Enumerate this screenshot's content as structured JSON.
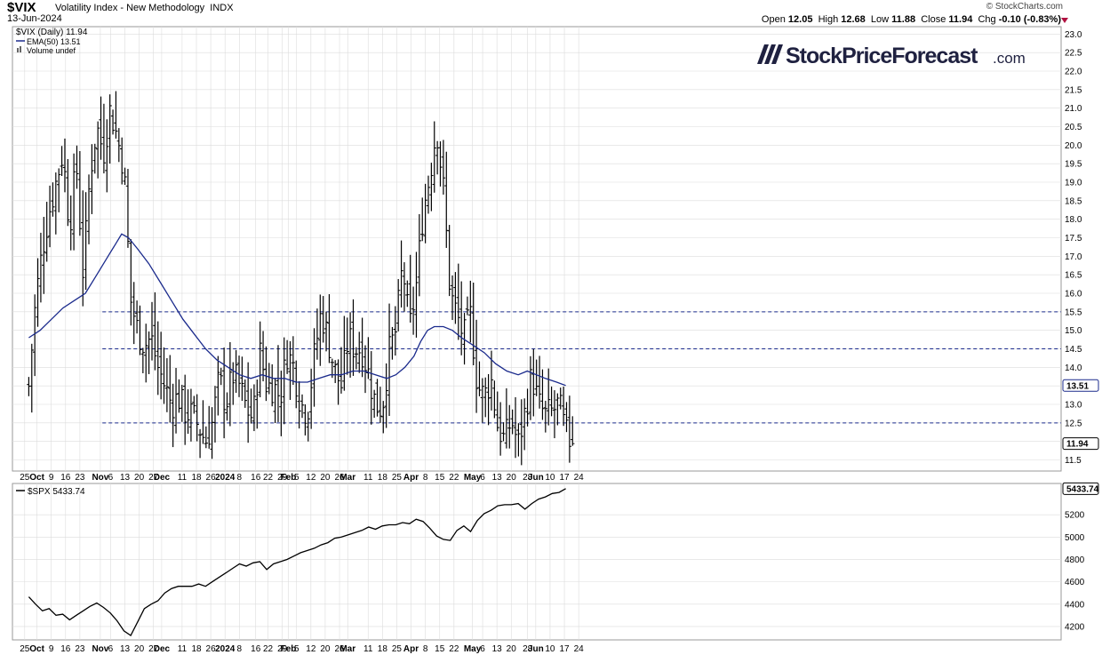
{
  "header": {
    "symbol": "$VIX",
    "name": "Volatility Index - New Methodology",
    "exchange": "INDX",
    "date": "13-Jun-2024",
    "copyright": "© StockCharts.com",
    "open_label": "Open",
    "open": "12.05",
    "high_label": "High",
    "high": "12.68",
    "low_label": "Low",
    "low": "11.88",
    "close_label": "Close",
    "close": "11.94",
    "chg_label": "Chg",
    "chg": "-0.10 (-0.83%)",
    "chg_icon": "down-triangle-icon"
  },
  "watermark": {
    "brand": "StockPriceForecast",
    "suffix": ".com"
  },
  "colors": {
    "ema": "#1a2a8c",
    "ref_lines": "#1a2a8c",
    "bars": "#000000",
    "grid": "#dcdcdc",
    "down_arrow": "#b01040",
    "logo": "#1f2140"
  },
  "chart_data": [
    {
      "type": "ohlc",
      "title": "$VIX (Daily) 11.94",
      "legend": [
        {
          "name": "$VIX (Daily)",
          "value": "11.94",
          "icon": "ohlc-bar-icon"
        },
        {
          "name": "EMA(50)",
          "value": "13.51",
          "icon": "line-icon"
        },
        {
          "name": "Volume undef",
          "value": "",
          "icon": "volume-icon"
        }
      ],
      "ylim": [
        11.2,
        23.2
      ],
      "y_ticks": [
        "11.5",
        "12.0",
        "12.5",
        "13.0",
        "13.5",
        "14.0",
        "14.5",
        "15.0",
        "15.5",
        "16.0",
        "16.5",
        "17.0",
        "17.5",
        "18.0",
        "18.5",
        "19.0",
        "19.5",
        "20.0",
        "20.5",
        "21.0",
        "21.5",
        "22.0",
        "22.5",
        "23.0"
      ],
      "last_value_tags": [
        "13.51",
        "11.94"
      ],
      "reference_lines": [
        12.5,
        14.5,
        15.5
      ],
      "close_points": [
        [
          0,
          13.5
        ],
        [
          6,
          15.8
        ],
        [
          12,
          17.2
        ],
        [
          18,
          18.2
        ],
        [
          24,
          19.0
        ],
        [
          30,
          19.8
        ],
        [
          36,
          17.8
        ],
        [
          42,
          19.5
        ],
        [
          48,
          16.5
        ],
        [
          54,
          19.2
        ],
        [
          60,
          20.5
        ],
        [
          66,
          19.8
        ],
        [
          72,
          21.0
        ],
        [
          78,
          20.2
        ],
        [
          84,
          19.4
        ],
        [
          90,
          15.8
        ],
        [
          96,
          15.0
        ],
        [
          102,
          14.6
        ],
        [
          108,
          14.8
        ],
        [
          114,
          14.0
        ],
        [
          120,
          13.5
        ],
        [
          126,
          13.0
        ],
        [
          132,
          13.2
        ],
        [
          138,
          12.8
        ],
        [
          144,
          12.7
        ],
        [
          150,
          12.4
        ],
        [
          156,
          12.0
        ],
        [
          162,
          12.5
        ],
        [
          168,
          13.7
        ],
        [
          174,
          13.0
        ],
        [
          180,
          13.8
        ],
        [
          186,
          13.5
        ],
        [
          192,
          12.9
        ],
        [
          198,
          12.6
        ],
        [
          204,
          14.4
        ],
        [
          210,
          13.5
        ],
        [
          216,
          13.5
        ],
        [
          222,
          13.2
        ],
        [
          228,
          14.4
        ],
        [
          234,
          14.0
        ],
        [
          240,
          13.0
        ],
        [
          246,
          12.8
        ],
        [
          252,
          14.3
        ],
        [
          258,
          15.5
        ],
        [
          264,
          14.8
        ],
        [
          270,
          13.9
        ],
        [
          276,
          13.5
        ],
        [
          282,
          14.8
        ],
        [
          288,
          14.5
        ],
        [
          294,
          14.5
        ],
        [
          300,
          13.8
        ],
        [
          306,
          13.0
        ],
        [
          312,
          12.9
        ],
        [
          318,
          14.4
        ],
        [
          324,
          15.0
        ],
        [
          330,
          16.8
        ],
        [
          336,
          15.0
        ],
        [
          342,
          16.2
        ],
        [
          348,
          18.2
        ],
        [
          354,
          19.2
        ],
        [
          360,
          20.5
        ],
        [
          366,
          18.8
        ],
        [
          372,
          16.0
        ],
        [
          378,
          15.4
        ],
        [
          384,
          14.8
        ],
        [
          390,
          15.4
        ],
        [
          396,
          13.5
        ],
        [
          402,
          13.2
        ],
        [
          408,
          13.7
        ],
        [
          414,
          12.4
        ],
        [
          420,
          12.0
        ],
        [
          426,
          12.6
        ],
        [
          432,
          11.9
        ],
        [
          438,
          12.8
        ],
        [
          444,
          13.8
        ],
        [
          450,
          13.0
        ],
        [
          456,
          12.7
        ],
        [
          462,
          12.8
        ],
        [
          468,
          13.0
        ],
        [
          474,
          12.2
        ],
        [
          480,
          11.94
        ]
      ],
      "ema50_points": [
        [
          0,
          14.8
        ],
        [
          10,
          15.0
        ],
        [
          20,
          15.3
        ],
        [
          30,
          15.6
        ],
        [
          40,
          15.8
        ],
        [
          50,
          16.0
        ],
        [
          60,
          16.5
        ],
        [
          70,
          17.0
        ],
        [
          76,
          17.3
        ],
        [
          82,
          17.6
        ],
        [
          88,
          17.5
        ],
        [
          96,
          17.2
        ],
        [
          106,
          16.8
        ],
        [
          116,
          16.3
        ],
        [
          126,
          15.8
        ],
        [
          136,
          15.3
        ],
        [
          146,
          14.9
        ],
        [
          156,
          14.5
        ],
        [
          166,
          14.2
        ],
        [
          176,
          14.0
        ],
        [
          186,
          13.8
        ],
        [
          196,
          13.7
        ],
        [
          206,
          13.8
        ],
        [
          216,
          13.7
        ],
        [
          226,
          13.7
        ],
        [
          236,
          13.6
        ],
        [
          246,
          13.6
        ],
        [
          256,
          13.7
        ],
        [
          266,
          13.8
        ],
        [
          276,
          13.8
        ],
        [
          286,
          13.9
        ],
        [
          296,
          13.9
        ],
        [
          306,
          13.8
        ],
        [
          316,
          13.7
        ],
        [
          324,
          13.8
        ],
        [
          332,
          14.0
        ],
        [
          340,
          14.3
        ],
        [
          346,
          14.7
        ],
        [
          352,
          15.0
        ],
        [
          358,
          15.1
        ],
        [
          366,
          15.1
        ],
        [
          374,
          15.0
        ],
        [
          382,
          14.8
        ],
        [
          392,
          14.6
        ],
        [
          402,
          14.4
        ],
        [
          412,
          14.1
        ],
        [
          422,
          13.9
        ],
        [
          432,
          13.8
        ],
        [
          440,
          13.9
        ],
        [
          448,
          13.8
        ],
        [
          456,
          13.7
        ],
        [
          466,
          13.6
        ],
        [
          474,
          13.51
        ]
      ]
    },
    {
      "type": "line",
      "title": "$SPX 5433.74",
      "legend": [
        {
          "name": "$SPX",
          "value": "5433.74",
          "icon": "line-icon"
        }
      ],
      "ylim": [
        4080,
        5480
      ],
      "y_ticks": [
        "4200",
        "4400",
        "4600",
        "4800",
        "5000",
        "5200"
      ],
      "last_value_tags": [
        "5433.74"
      ],
      "points": [
        [
          0,
          4465
        ],
        [
          6,
          4400
        ],
        [
          12,
          4340
        ],
        [
          18,
          4360
        ],
        [
          24,
          4300
        ],
        [
          30,
          4310
        ],
        [
          36,
          4260
        ],
        [
          42,
          4300
        ],
        [
          48,
          4340
        ],
        [
          54,
          4380
        ],
        [
          60,
          4410
        ],
        [
          66,
          4370
        ],
        [
          72,
          4320
        ],
        [
          78,
          4250
        ],
        [
          84,
          4160
        ],
        [
          90,
          4120
        ],
        [
          96,
          4240
        ],
        [
          102,
          4360
        ],
        [
          108,
          4400
        ],
        [
          114,
          4430
        ],
        [
          120,
          4500
        ],
        [
          126,
          4540
        ],
        [
          132,
          4560
        ],
        [
          138,
          4560
        ],
        [
          144,
          4560
        ],
        [
          150,
          4580
        ],
        [
          156,
          4560
        ],
        [
          162,
          4600
        ],
        [
          168,
          4640
        ],
        [
          174,
          4680
        ],
        [
          180,
          4720
        ],
        [
          186,
          4760
        ],
        [
          192,
          4740
        ],
        [
          198,
          4770
        ],
        [
          204,
          4780
        ],
        [
          210,
          4710
        ],
        [
          216,
          4760
        ],
        [
          222,
          4780
        ],
        [
          228,
          4800
        ],
        [
          234,
          4830
        ],
        [
          240,
          4860
        ],
        [
          246,
          4880
        ],
        [
          252,
          4900
        ],
        [
          258,
          4930
        ],
        [
          264,
          4950
        ],
        [
          270,
          4990
        ],
        [
          276,
          5000
        ],
        [
          282,
          5020
        ],
        [
          288,
          5040
        ],
        [
          294,
          5060
        ],
        [
          300,
          5090
        ],
        [
          306,
          5070
        ],
        [
          312,
          5100
        ],
        [
          318,
          5110
        ],
        [
          324,
          5110
        ],
        [
          330,
          5130
        ],
        [
          336,
          5120
        ],
        [
          342,
          5160
        ],
        [
          348,
          5140
        ],
        [
          354,
          5080
        ],
        [
          360,
          5010
        ],
        [
          366,
          4980
        ],
        [
          372,
          4970
        ],
        [
          378,
          5060
        ],
        [
          384,
          5100
        ],
        [
          390,
          5050
        ],
        [
          396,
          5150
        ],
        [
          402,
          5210
        ],
        [
          408,
          5240
        ],
        [
          414,
          5280
        ],
        [
          420,
          5290
        ],
        [
          426,
          5290
        ],
        [
          432,
          5300
        ],
        [
          438,
          5250
        ],
        [
          444,
          5300
        ],
        [
          450,
          5340
        ],
        [
          456,
          5360
        ],
        [
          462,
          5390
        ],
        [
          468,
          5400
        ],
        [
          474,
          5434
        ]
      ]
    }
  ],
  "x_axis": {
    "day_min": -8,
    "day_max": 505,
    "ticks": [
      {
        "d": -2,
        "label": "25"
      },
      {
        "d": 4,
        "label": "Oct",
        "bold": true
      },
      {
        "d": 11,
        "label": "9"
      },
      {
        "d": 18,
        "label": "16"
      },
      {
        "d": 25,
        "label": "23"
      },
      {
        "d": 35,
        "label": "Nov",
        "bold": true
      },
      {
        "d": 40,
        "label": "6"
      },
      {
        "d": 47,
        "label": "13"
      },
      {
        "d": 54,
        "label": "20"
      },
      {
        "d": 61,
        "label": "27"
      },
      {
        "d": 65,
        "label": "Dec",
        "bold": true
      },
      {
        "d": 75,
        "label": "11"
      },
      {
        "d": 82,
        "label": "18"
      },
      {
        "d": 89,
        "label": "26"
      },
      {
        "d": 96,
        "label": "2024",
        "bold": true
      },
      {
        "d": 103,
        "label": "8"
      },
      {
        "d": 111,
        "label": "16"
      },
      {
        "d": 117,
        "label": "22"
      },
      {
        "d": 124,
        "label": "29"
      },
      {
        "d": 127,
        "label": "Feb",
        "bold": true
      },
      {
        "d": 131,
        "label": "5"
      },
      {
        "d": 138,
        "label": "12"
      },
      {
        "d": 145,
        "label": "20"
      },
      {
        "d": 152,
        "label": "26"
      },
      {
        "d": 156,
        "label": "Mar",
        "bold": true
      },
      {
        "d": 166,
        "label": "11"
      },
      {
        "d": 173,
        "label": "18"
      },
      {
        "d": 180,
        "label": "25"
      },
      {
        "d": 187,
        "label": "Apr",
        "bold": true
      },
      {
        "d": 194,
        "label": "8"
      },
      {
        "d": 201,
        "label": "15"
      },
      {
        "d": 208,
        "label": "22"
      },
      {
        "d": 217,
        "label": "May",
        "bold": true
      },
      {
        "d": 222,
        "label": "6"
      },
      {
        "d": 229,
        "label": "13"
      },
      {
        "d": 236,
        "label": "20"
      },
      {
        "d": 244,
        "label": "28"
      },
      {
        "d": 248,
        "label": "Jun",
        "bold": true
      },
      {
        "d": 255,
        "label": "10"
      },
      {
        "d": 262,
        "label": "17"
      },
      {
        "d": 269,
        "label": "24"
      }
    ]
  }
}
